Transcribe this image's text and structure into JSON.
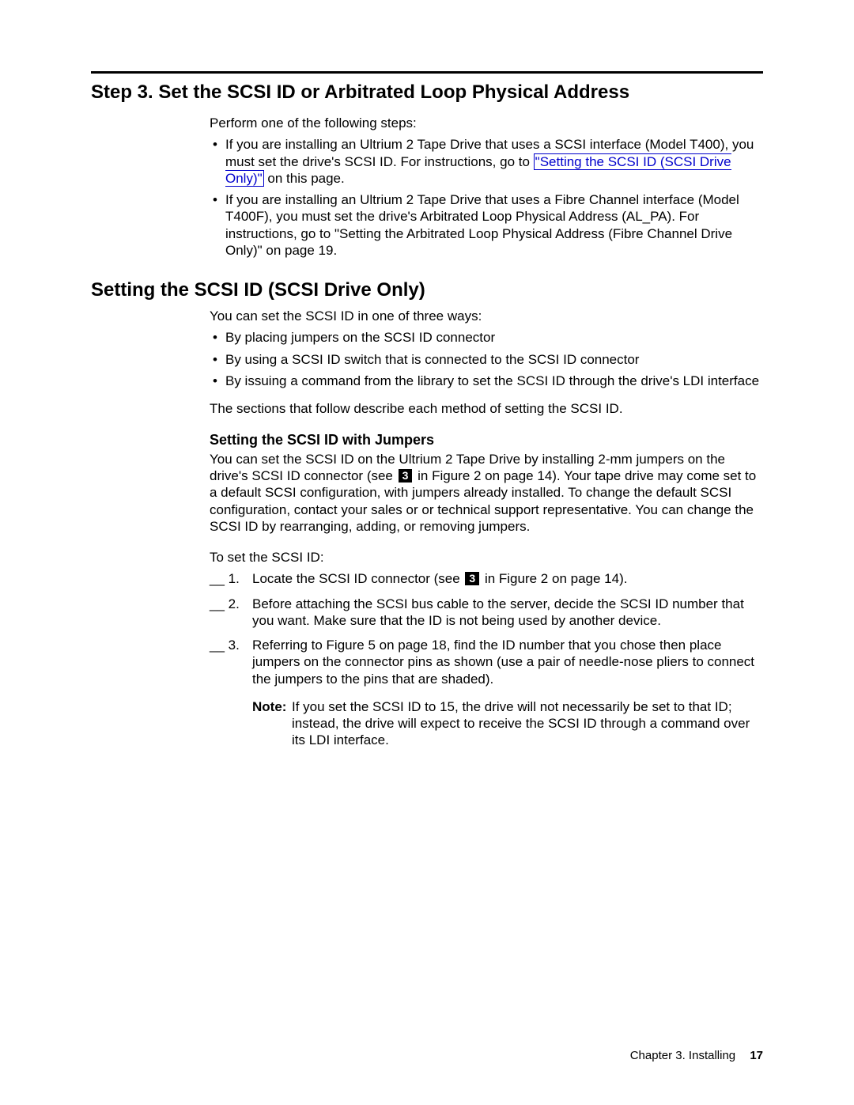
{
  "heading1": "Step 3. Set the SCSI ID or Arbitrated Loop Physical Address",
  "intro": "Perform one of the following steps:",
  "bullet1_pre": "If you are installing an Ultrium 2 Tape Drive that uses a SCSI interface (Model T400), you must set the drive's SCSI ID. For instructions, go to ",
  "bullet1_link": "\"Setting the SCSI ID (SCSI Drive Only)\"",
  "bullet1_post": " on this page.",
  "bullet2": "If you are installing an Ultrium 2 Tape Drive that uses a Fibre Channel interface (Model T400F), you must set the drive's Arbitrated Loop Physical Address (AL_PA). For instructions, go to \"Setting the Arbitrated Loop Physical Address (Fibre Channel Drive Only)\" on page 19.",
  "heading2": "Setting the SCSI ID (SCSI Drive Only)",
  "scsi_intro": "You can set the SCSI ID in one of three ways:",
  "scsi_b1": "By placing jumpers on the SCSI ID connector",
  "scsi_b2": "By using a SCSI ID switch that is connected to the SCSI ID connector",
  "scsi_b3": "By issuing a command from the library to set the SCSI ID through the drive's LDI interface",
  "scsi_follow": "The sections that follow describe each method of setting the SCSI ID.",
  "heading3": "Setting the SCSI ID with Jumpers",
  "jumpers_p1_a": "You can set the SCSI ID on the Ultrium 2 Tape Drive by installing 2-mm jumpers on the drive's SCSI ID connector (see ",
  "callout3": "3",
  "jumpers_p1_b": " in Figure 2 on page 14). Your tape drive may come set to a default SCSI configuration, with jumpers already installed. To change the default SCSI configuration, contact your sales or or technical support representative. You can change the SCSI ID by rearranging, adding, or removing jumpers.",
  "toset": "To set the SCSI ID:",
  "step1_lead": "__ 1.",
  "step1_a": "Locate the SCSI ID connector (see ",
  "step1_b": " in Figure 2 on page 14).",
  "step2_lead": "__ 2.",
  "step2": "Before attaching the SCSI bus cable to the server, decide the SCSI ID number that you want. Make sure that the ID is not being used by another device.",
  "step3_lead": "__ 3.",
  "step3": "Referring to Figure 5 on page 18, find the ID number that you chose then place jumpers on the connector pins as shown (use a pair of needle-nose pliers to connect the jumpers to the pins that are shaded).",
  "note_label": "Note:",
  "note_body": "If you set the SCSI ID to 15, the drive will not necessarily be set to that ID; instead, the drive will expect to receive the SCSI ID through a command over its LDI interface.",
  "footer_chapter": "Chapter 3. Installing",
  "footer_page": "17"
}
